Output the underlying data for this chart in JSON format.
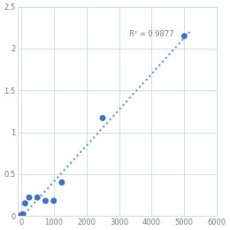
{
  "x_data": [
    0,
    62.5,
    125,
    250,
    500,
    750,
    1000,
    1250,
    2500,
    5000
  ],
  "y_data": [
    0.01,
    0.02,
    0.15,
    0.22,
    0.22,
    0.18,
    0.18,
    0.4,
    1.17,
    2.15
  ],
  "r_squared": "R² = 0.9877",
  "r2_x": 3300,
  "r2_y": 2.17,
  "xlim": [
    -100,
    6000
  ],
  "ylim": [
    0,
    2.5
  ],
  "xticks": [
    0,
    1000,
    2000,
    3000,
    4000,
    5000,
    6000
  ],
  "yticks": [
    0,
    0.5,
    1.0,
    1.5,
    2.0,
    2.5
  ],
  "ytick_labels": [
    "0",
    "0.5",
    "1",
    "1.5",
    "2",
    "2.5"
  ],
  "dot_color": "#4472C4",
  "line_color": "#5B9BD5",
  "grid_color": "#D0D8E4",
  "bg_color": "#FFFFFF",
  "font_color": "#808080",
  "annotation_color": "#808080",
  "marker_size": 5,
  "line_style": "dotted",
  "line_width": 1.5,
  "figsize": [
    2.6,
    2.6
  ],
  "dpi": 100
}
